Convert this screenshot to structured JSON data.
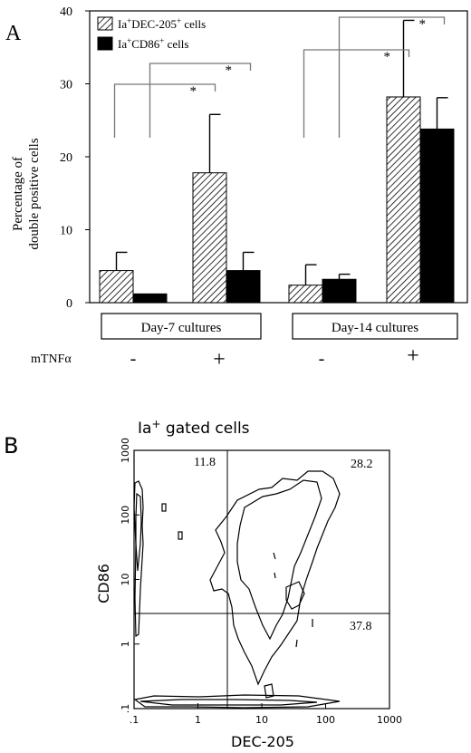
{
  "panel_a": {
    "label": "A",
    "ylabel_line1": "Percentage of",
    "ylabel_line2": "double positive cells",
    "yticks": [
      "0",
      "10",
      "20",
      "30",
      "40"
    ],
    "legend": [
      {
        "prefix": "Ia",
        "sup1": "+",
        "mid": "DEC-205",
        "sup2": "+",
        "suffix": " cells",
        "pattern": "hatched"
      },
      {
        "prefix": "Ia",
        "sup1": "+",
        "mid": "CD86",
        "sup2": "+",
        "suffix": " cells",
        "pattern": "solid"
      }
    ],
    "group_labels": [
      "Day-7 cultures",
      "Day-14 cultures"
    ],
    "treatment_label": "mTNFα",
    "treatment_values": [
      "-",
      "+",
      "-",
      "+"
    ],
    "significance_mark": "*"
  },
  "panel_b": {
    "label": "B",
    "title_prefix": "Ia",
    "title_sup": "+",
    "title_suffix": " gated cells",
    "xlabel": "DEC-205",
    "ylabel": "CD86",
    "xticks": [
      ".1",
      "1",
      "10",
      "100",
      "1000"
    ],
    "yticks": [
      ".1",
      "1",
      "10",
      "100",
      "1000"
    ],
    "quadrant_values": [
      "11.8",
      "28.2",
      "37.8"
    ]
  },
  "chart_data": [
    {
      "type": "bar",
      "title": "",
      "xlabel": "",
      "ylabel": "Percentage of double positive cells",
      "ylim": [
        0,
        40
      ],
      "grid": false,
      "legend_position": "top-left",
      "categories": [
        "Day-7 cultures / mTNFα -",
        "Day-7 cultures / mTNFα +",
        "Day-14 cultures / mTNFα -",
        "Day-14 cultures / mTNFα +"
      ],
      "series": [
        {
          "name": "Ia+DEC-205+ cells",
          "pattern": "hatched",
          "values": [
            4.4,
            17.8,
            2.4,
            28.2
          ],
          "error": [
            2.5,
            8.0,
            2.8,
            10.5
          ]
        },
        {
          "name": "Ia+CD86+ cells",
          "pattern": "solid",
          "values": [
            1.2,
            4.4,
            3.2,
            23.8
          ],
          "error": [
            0,
            2.5,
            0.7,
            4.3
          ]
        }
      ],
      "significance": [
        {
          "from": 0,
          "to": 1,
          "series": "Ia+DEC-205+ cells",
          "label": "*"
        },
        {
          "from": 0,
          "to": 1,
          "series": "Ia+CD86+ cells",
          "label": "*"
        },
        {
          "from": 2,
          "to": 3,
          "series": "Ia+DEC-205+ cells",
          "label": "*"
        },
        {
          "from": 2,
          "to": 3,
          "series": "Ia+CD86+ cells",
          "label": "*"
        }
      ]
    },
    {
      "type": "contour",
      "title": "Ia+ gated cells",
      "xlabel": "DEC-205",
      "ylabel": "CD86",
      "x_scale": "log",
      "y_scale": "log",
      "xlim": [
        0.1,
        1000
      ],
      "ylim": [
        0.1,
        1000
      ],
      "quadrant_gates": {
        "x": 3,
        "y": 3
      },
      "quadrant_percentages": {
        "upper_left": 11.8,
        "upper_right": 28.2,
        "lower_right": 37.8
      }
    }
  ]
}
